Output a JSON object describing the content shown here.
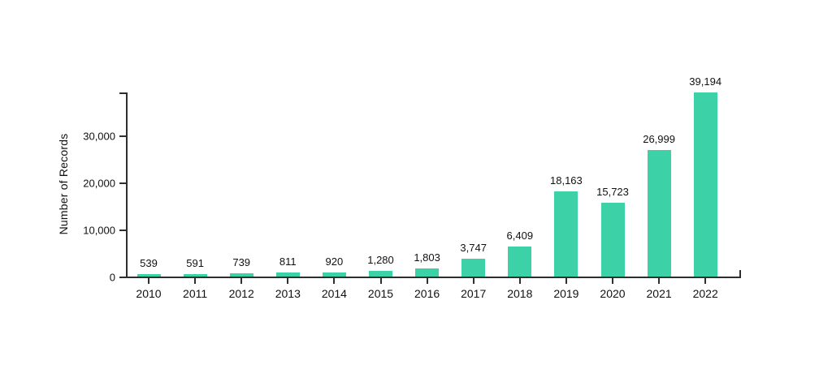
{
  "chart_data": {
    "type": "bar",
    "title": "",
    "xlabel": "",
    "ylabel": "Number of Records",
    "categories": [
      "2010",
      "2011",
      "2012",
      "2013",
      "2014",
      "2015",
      "2016",
      "2017",
      "2018",
      "2019",
      "2020",
      "2021",
      "2022"
    ],
    "values": [
      539,
      591,
      739,
      811,
      920,
      1280,
      1803,
      3747,
      6409,
      18163,
      15723,
      26999,
      39194
    ],
    "value_labels": [
      "539",
      "591",
      "739",
      "811",
      "920",
      "1,280",
      "1,803",
      "3,747",
      "6,409",
      "18,163",
      "15,723",
      "26,999",
      "39,194"
    ],
    "ylim": [
      0,
      39194
    ],
    "yticks": [
      0,
      10000,
      20000,
      30000
    ],
    "ytick_labels": [
      "0",
      "10,000",
      "20,000",
      "30,000"
    ],
    "grid": false,
    "legend": "none",
    "bar_color": "#3dd1a8",
    "axis_color": "#2e2e2e",
    "text_color": "#111111",
    "background_color": "#ffffff"
  }
}
